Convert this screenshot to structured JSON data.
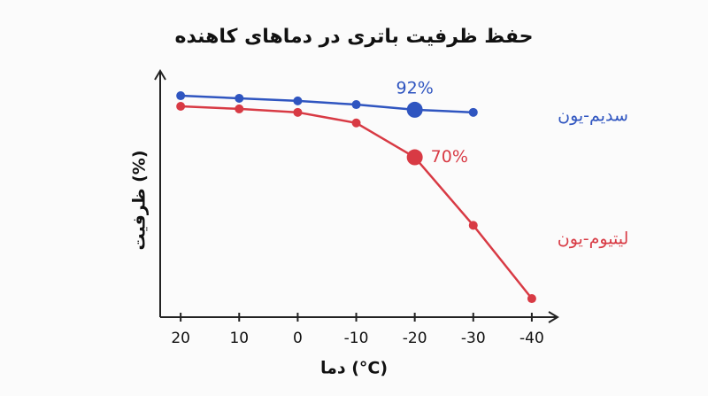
{
  "chart_data": {
    "type": "line",
    "title": "حفظ ظرفیت باتری در دماهای کاهنده",
    "x_label": "دما (°C)",
    "y_label": "ظرفیت (%)",
    "x": [
      20,
      10,
      0,
      -10,
      -20,
      -30,
      -40
    ],
    "xlim": [
      23.5,
      -44.4
    ],
    "xticks": [
      20,
      10,
      0,
      -10,
      -20,
      -30,
      -40
    ],
    "ylim": [
      -4,
      110
    ],
    "series": [
      {
        "name": "سدیم-یون",
        "color": "#2f55c0",
        "values": [
          98.5,
          97.3,
          96.1,
          94.4,
          92,
          90.8,
          null
        ],
        "value_labels": [
          null,
          null,
          null,
          null,
          "92%",
          null,
          null
        ]
      },
      {
        "name": "لیتیوم-یون",
        "color": "#d83a44",
        "values": [
          93.6,
          92.4,
          90.8,
          85.9,
          70,
          38.5,
          4.6
        ],
        "value_labels": [
          null,
          null,
          null,
          null,
          "70%",
          null,
          null
        ]
      }
    ]
  }
}
